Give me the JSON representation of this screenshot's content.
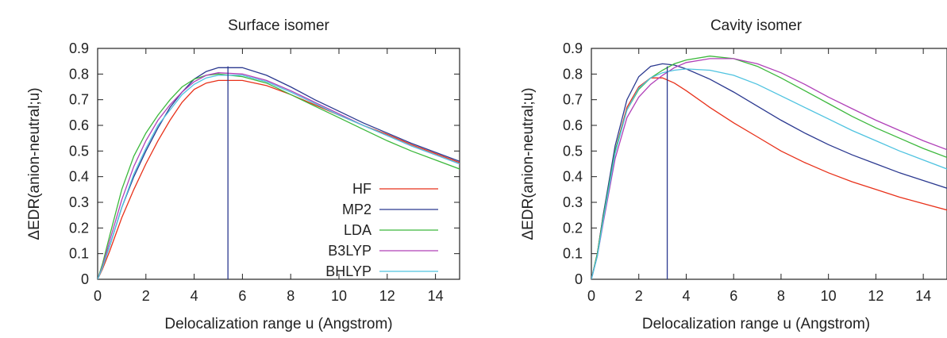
{
  "chart_data": [
    {
      "type": "line",
      "title": "Surface isomer",
      "xlabel": "Delocalization range u (Angstrom)",
      "ylabel": "ΔEDR(anion-neutral;u)",
      "xlim": [
        0,
        15
      ],
      "ylim": [
        0,
        0.9
      ],
      "xticks": [
        "0",
        "2",
        "4",
        "6",
        "8",
        "10",
        "12",
        "14"
      ],
      "yticks": [
        "0",
        "0.1",
        "0.2",
        "0.3",
        "0.4",
        "0.5",
        "0.6",
        "0.7",
        "0.8",
        "0.9"
      ],
      "legend_position": "bottom-right",
      "marker_line_x": 5.4,
      "series": [
        {
          "name": "HF",
          "color": "#e8311a",
          "x": [
            0,
            0.2,
            0.5,
            1,
            1.5,
            2,
            2.5,
            3,
            3.5,
            4,
            4.5,
            5,
            6,
            7,
            8,
            9,
            10,
            11,
            12,
            13,
            14,
            15
          ],
          "y": [
            0,
            0.04,
            0.11,
            0.24,
            0.35,
            0.45,
            0.54,
            0.62,
            0.69,
            0.74,
            0.765,
            0.775,
            0.775,
            0.755,
            0.72,
            0.68,
            0.64,
            0.6,
            0.565,
            0.525,
            0.49,
            0.455
          ]
        },
        {
          "name": "MP2",
          "color": "#2b3990",
          "x": [
            0,
            0.2,
            0.5,
            1,
            1.5,
            2,
            2.5,
            3,
            3.5,
            4,
            4.5,
            5,
            6,
            7,
            8,
            9,
            10,
            11,
            12,
            13,
            14,
            15
          ],
          "y": [
            0,
            0.05,
            0.13,
            0.28,
            0.4,
            0.5,
            0.59,
            0.67,
            0.73,
            0.78,
            0.81,
            0.825,
            0.825,
            0.795,
            0.75,
            0.7,
            0.655,
            0.61,
            0.57,
            0.53,
            0.495,
            0.46
          ]
        },
        {
          "name": "LDA",
          "color": "#3cb83c",
          "x": [
            0,
            0.2,
            0.5,
            1,
            1.5,
            2,
            2.5,
            3,
            3.5,
            4,
            4.5,
            5,
            6,
            7,
            8,
            9,
            10,
            11,
            12,
            13,
            14,
            15
          ],
          "y": [
            0,
            0.06,
            0.17,
            0.35,
            0.48,
            0.57,
            0.64,
            0.7,
            0.75,
            0.78,
            0.795,
            0.8,
            0.79,
            0.765,
            0.72,
            0.675,
            0.63,
            0.585,
            0.54,
            0.5,
            0.465,
            0.43
          ]
        },
        {
          "name": "B3LYP",
          "color": "#b040b8",
          "x": [
            0,
            0.2,
            0.5,
            1,
            1.5,
            2,
            2.5,
            3,
            3.5,
            4,
            4.5,
            5,
            6,
            7,
            8,
            9,
            10,
            11,
            12,
            13,
            14,
            15
          ],
          "y": [
            0,
            0.05,
            0.15,
            0.31,
            0.44,
            0.54,
            0.62,
            0.68,
            0.73,
            0.77,
            0.795,
            0.805,
            0.8,
            0.775,
            0.735,
            0.69,
            0.645,
            0.6,
            0.56,
            0.52,
            0.485,
            0.45
          ]
        },
        {
          "name": "BHLYP",
          "color": "#4fc3e0",
          "x": [
            0,
            0.2,
            0.5,
            1,
            1.5,
            2,
            2.5,
            3,
            3.5,
            4,
            4.5,
            5,
            6,
            7,
            8,
            9,
            10,
            11,
            12,
            13,
            14,
            15
          ],
          "y": [
            0,
            0.045,
            0.13,
            0.28,
            0.41,
            0.51,
            0.6,
            0.66,
            0.72,
            0.76,
            0.785,
            0.795,
            0.795,
            0.77,
            0.73,
            0.685,
            0.64,
            0.6,
            0.56,
            0.52,
            0.485,
            0.45
          ]
        }
      ]
    },
    {
      "type": "line",
      "title": "Cavity isomer",
      "xlabel": "Delocalization range u (Angstrom)",
      "ylabel": "ΔEDR(anion-neutral;u)",
      "xlim": [
        0,
        15
      ],
      "ylim": [
        0,
        0.9
      ],
      "xticks": [
        "0",
        "2",
        "4",
        "6",
        "8",
        "10",
        "12",
        "14"
      ],
      "yticks": [
        "0",
        "0.1",
        "0.2",
        "0.3",
        "0.4",
        "0.5",
        "0.6",
        "0.7",
        "0.8",
        "0.9"
      ],
      "marker_line_x": 3.2,
      "series": [
        {
          "name": "HF",
          "color": "#e8311a",
          "x": [
            0,
            0.25,
            0.5,
            1,
            1.5,
            2,
            2.5,
            3,
            3.5,
            4,
            5,
            6,
            7,
            8,
            9,
            10,
            11,
            12,
            13,
            14,
            15
          ],
          "y": [
            0,
            0.1,
            0.25,
            0.5,
            0.67,
            0.75,
            0.785,
            0.785,
            0.765,
            0.735,
            0.67,
            0.61,
            0.555,
            0.5,
            0.455,
            0.415,
            0.38,
            0.35,
            0.32,
            0.295,
            0.27
          ]
        },
        {
          "name": "MP2",
          "color": "#2b3990",
          "x": [
            0,
            0.25,
            0.5,
            1,
            1.5,
            2,
            2.5,
            3,
            3.5,
            4,
            5,
            6,
            7,
            8,
            9,
            10,
            11,
            12,
            13,
            14,
            15
          ],
          "y": [
            0,
            0.1,
            0.25,
            0.52,
            0.7,
            0.79,
            0.83,
            0.84,
            0.835,
            0.82,
            0.78,
            0.73,
            0.675,
            0.62,
            0.57,
            0.525,
            0.485,
            0.45,
            0.415,
            0.385,
            0.355
          ]
        },
        {
          "name": "LDA",
          "color": "#3cb83c",
          "x": [
            0,
            0.25,
            0.5,
            1,
            1.5,
            2,
            2.5,
            3,
            3.5,
            4,
            5,
            6,
            7,
            8,
            9,
            10,
            11,
            12,
            13,
            14,
            15
          ],
          "y": [
            0,
            0.1,
            0.24,
            0.5,
            0.66,
            0.74,
            0.785,
            0.815,
            0.84,
            0.855,
            0.87,
            0.86,
            0.83,
            0.785,
            0.735,
            0.685,
            0.635,
            0.59,
            0.55,
            0.51,
            0.475
          ]
        },
        {
          "name": "B3LYP",
          "color": "#b040b8",
          "x": [
            0,
            0.25,
            0.5,
            1,
            1.5,
            2,
            2.5,
            3,
            3.5,
            4,
            5,
            6,
            7,
            8,
            9,
            10,
            11,
            12,
            13,
            14,
            15
          ],
          "y": [
            0,
            0.09,
            0.22,
            0.47,
            0.63,
            0.71,
            0.76,
            0.795,
            0.825,
            0.845,
            0.86,
            0.86,
            0.84,
            0.805,
            0.76,
            0.71,
            0.665,
            0.62,
            0.58,
            0.54,
            0.505
          ]
        },
        {
          "name": "BHLYP",
          "color": "#4fc3e0",
          "x": [
            0,
            0.25,
            0.5,
            1,
            1.5,
            2,
            2.5,
            3,
            3.5,
            4,
            5,
            6,
            7,
            8,
            9,
            10,
            11,
            12,
            13,
            14,
            15
          ],
          "y": [
            0,
            0.09,
            0.23,
            0.49,
            0.66,
            0.745,
            0.785,
            0.805,
            0.815,
            0.82,
            0.815,
            0.795,
            0.76,
            0.715,
            0.67,
            0.625,
            0.58,
            0.54,
            0.5,
            0.465,
            0.43
          ]
        }
      ]
    }
  ]
}
